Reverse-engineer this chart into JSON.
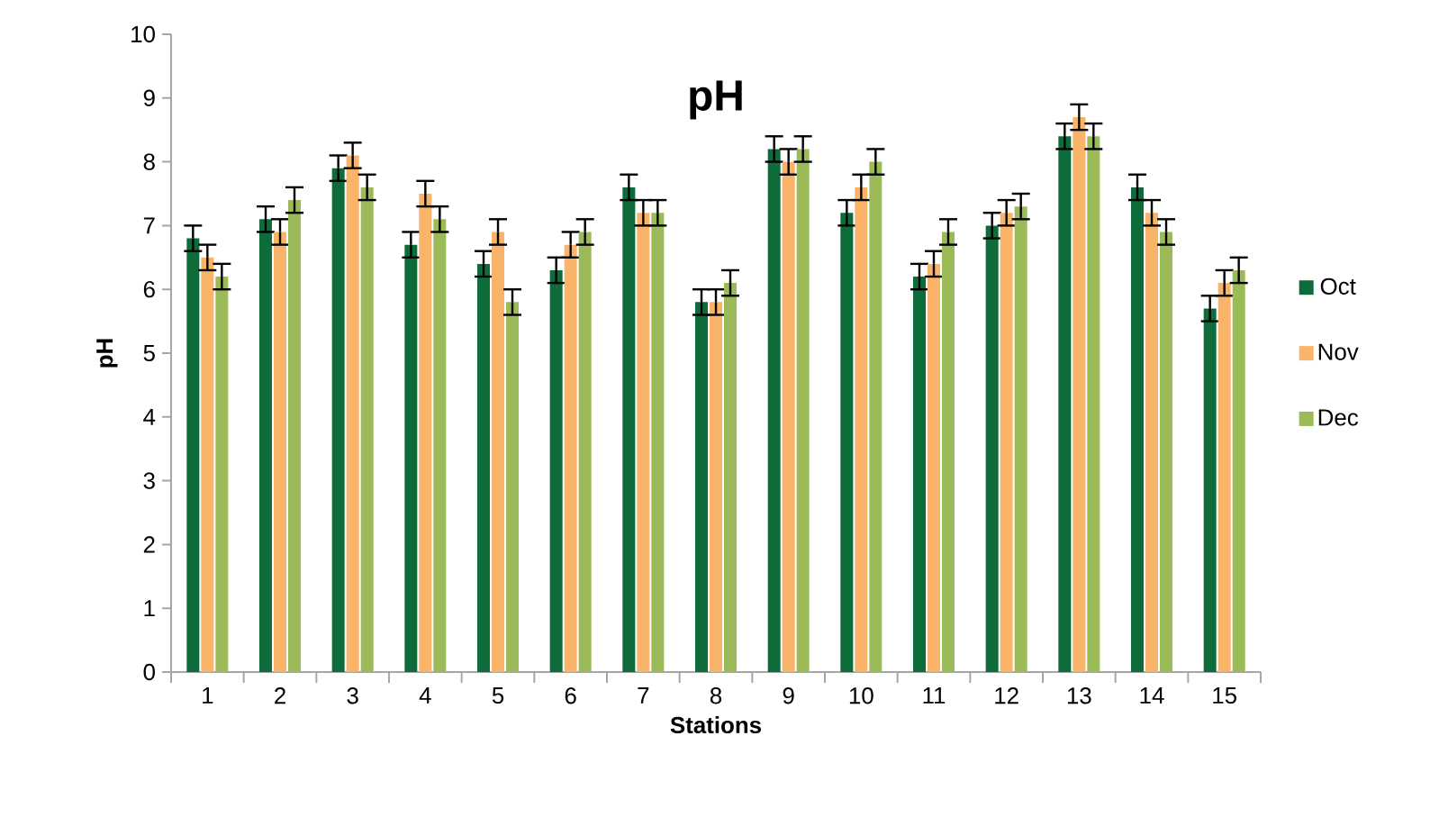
{
  "chart_data": {
    "type": "bar",
    "title": "pH",
    "xlabel": "Stations",
    "ylabel": "pH",
    "categories": [
      "1",
      "2",
      "3",
      "4",
      "5",
      "6",
      "7",
      "8",
      "9",
      "10",
      "11",
      "12",
      "13",
      "14",
      "15"
    ],
    "series": [
      {
        "name": "Oct",
        "color": "#0e6b3a",
        "values": [
          6.8,
          7.1,
          7.9,
          6.7,
          6.4,
          6.3,
          7.6,
          5.8,
          8.2,
          7.2,
          6.2,
          7.0,
          8.4,
          7.6,
          5.7
        ],
        "errors": [
          0.2,
          0.2,
          0.2,
          0.2,
          0.2,
          0.2,
          0.2,
          0.2,
          0.2,
          0.2,
          0.2,
          0.2,
          0.2,
          0.2,
          0.2
        ]
      },
      {
        "name": "Nov",
        "color": "#f9b469",
        "values": [
          6.5,
          6.9,
          8.1,
          7.5,
          6.9,
          6.7,
          7.2,
          5.8,
          8.0,
          7.6,
          6.4,
          7.2,
          8.7,
          7.2,
          6.1
        ],
        "errors": [
          0.2,
          0.2,
          0.2,
          0.2,
          0.2,
          0.2,
          0.2,
          0.2,
          0.2,
          0.2,
          0.2,
          0.2,
          0.2,
          0.2,
          0.2
        ]
      },
      {
        "name": "Dec",
        "color": "#9bbb59",
        "values": [
          6.2,
          7.4,
          7.6,
          7.1,
          5.8,
          6.9,
          7.2,
          6.1,
          8.2,
          8.0,
          6.9,
          7.3,
          8.4,
          6.9,
          6.3
        ],
        "errors": [
          0.2,
          0.2,
          0.2,
          0.2,
          0.2,
          0.2,
          0.2,
          0.2,
          0.2,
          0.2,
          0.2,
          0.2,
          0.2,
          0.2,
          0.2
        ]
      }
    ],
    "ylim": [
      0,
      10
    ],
    "yticks": [
      0,
      1,
      2,
      3,
      4,
      5,
      6,
      7,
      8,
      9,
      10
    ],
    "legend": "right",
    "grid": false
  }
}
